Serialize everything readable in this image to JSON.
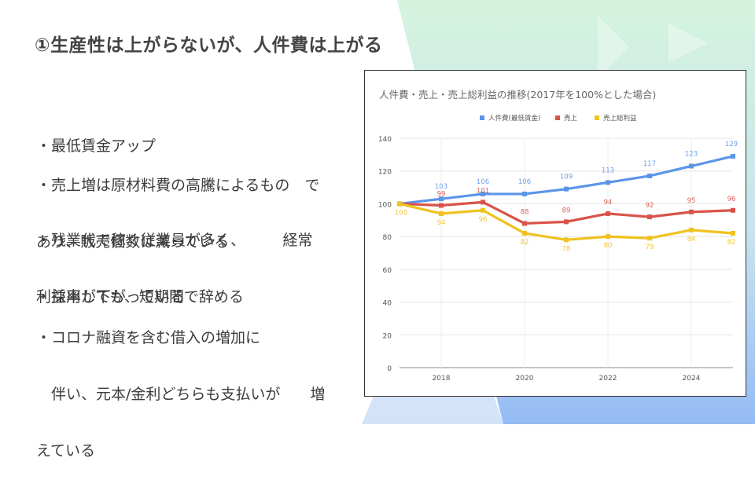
{
  "slide": {
    "title": "①生産性は上がらないが、人件費は上がる",
    "bullets": [
      {
        "lines": [
          "・最低賃金アップ"
        ]
      },
      {
        "lines": [
          "・売上増は原材料費の高騰によるもの　で",
          "あり、販売個数は減っている"
        ]
      },
      {
        "lines": [
          "・残業代で稼ぐ従業員が多く、　　　経常",
          "利益率が下がっている"
        ]
      },
      {
        "lines": [
          "・採用しても、短期間で辞める"
        ]
      },
      {
        "lines": [
          "・コロナ融資を含む借入の増加に",
          "　伴い、元本/金利どちらも支払いが　　増",
          "えている"
        ]
      }
    ]
  },
  "colors": {
    "accent_green": "#c8efd6",
    "accent_blue": "#9ec4f2"
  },
  "chart_data": {
    "type": "line",
    "title": "人件費・売上・売上総利益の推移(2017年を100%とした場合)",
    "x": [
      2017,
      2018,
      2019,
      2020,
      2021,
      2022,
      2023,
      2024,
      2025
    ],
    "x_tick_labels": [
      "2018",
      "2020",
      "2022",
      "2024"
    ],
    "x_ticks": [
      2018,
      2020,
      2022,
      2024
    ],
    "y_ticks": [
      0,
      20,
      40,
      60,
      80,
      100,
      120,
      140
    ],
    "ylim": [
      0,
      140
    ],
    "legend_position": "top",
    "grid": true,
    "series": [
      {
        "name": "人件費(最低賃金)",
        "color": "#5b95e8",
        "values": [
          100,
          103,
          106,
          106,
          109,
          113,
          117,
          123,
          129
        ],
        "labels": [
          "",
          "103",
          "106",
          "106",
          "109",
          "113",
          "117",
          "123",
          "129"
        ]
      },
      {
        "name": "売上",
        "color": "#d9534a",
        "values": [
          100,
          99,
          101,
          88,
          89,
          94,
          92,
          95,
          96
        ],
        "labels": [
          "",
          "99",
          "101",
          "88",
          "89",
          "94",
          "92",
          "95",
          "96"
        ]
      },
      {
        "name": "売上総利益",
        "color": "#f0c21e",
        "values": [
          100,
          94,
          96,
          82,
          78,
          80,
          79,
          84,
          82
        ],
        "labels": [
          "100",
          "94",
          "96",
          "82",
          "78",
          "80",
          "79",
          "84",
          "82"
        ]
      }
    ]
  }
}
